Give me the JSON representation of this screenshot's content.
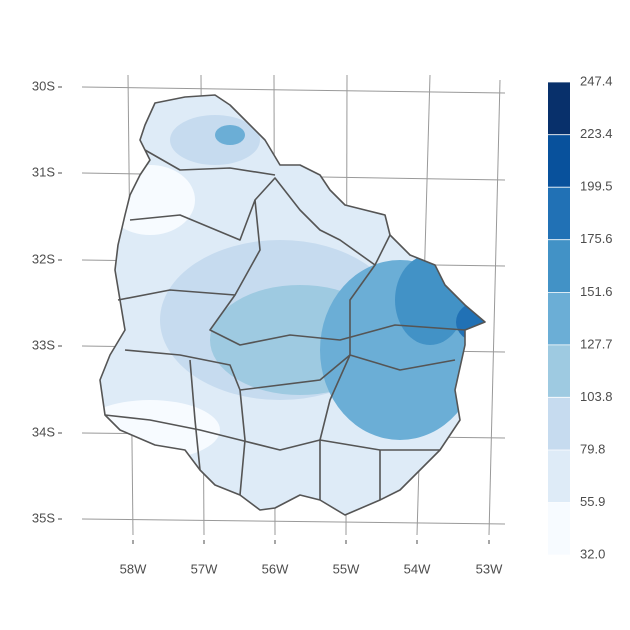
{
  "latitude_labels": [
    "30S",
    "31S",
    "32S",
    "33S",
    "34S",
    "35S"
  ],
  "longitude_labels": [
    "58W",
    "57W",
    "56W",
    "55W",
    "54W",
    "53W"
  ],
  "legend": {
    "ticks": [
      {
        "value": 32,
        "label": "32.0"
      },
      55.9,
      79.8,
      103.8,
      127.7,
      151.6,
      175.6,
      199.5,
      223.4,
      247.4
    ],
    "colors": [
      "#f7fbff",
      "#deebf7",
      "#c6dbef",
      "#9ecae1",
      "#6baed6",
      "#4292c6",
      "#2171b5",
      "#08519c",
      "#08306b"
    ]
  }
}
